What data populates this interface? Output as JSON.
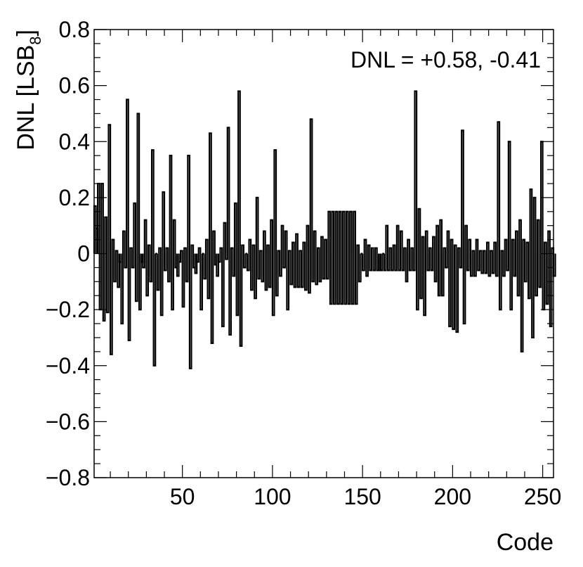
{
  "chart_data": {
    "type": "histogram",
    "xlabel": "Code",
    "ylabel": "DNL [LSB",
    "ylabel_subscript": "8",
    "ylabel_close": "]",
    "annotation": "DNL = +0.58, -0.41",
    "xlim": [
      1,
      256
    ],
    "ylim": [
      -0.8,
      0.8
    ],
    "x_ticks": [
      50,
      100,
      150,
      200,
      250
    ],
    "y_ticks": [
      0.8,
      0.6,
      0.4,
      0.2,
      0,
      -0.2,
      -0.4,
      -0.6,
      -0.8
    ],
    "y_tick_labels": [
      "0.8",
      "0.6",
      "0.4",
      "0.2",
      "0",
      "−0.2",
      "−0.4",
      "−0.6",
      "−0.8"
    ],
    "grid": false,
    "line_color": "#000000",
    "x_start": 1,
    "values": [
      0.17,
      0.09,
      0.25,
      -0.2,
      0.25,
      -0.24,
      0.13,
      -0.21,
      0.46,
      -0.36,
      0.05,
      -0.1,
      0.01,
      -0.12,
      -0.03,
      -0.25,
      0.08,
      -0.05,
      0.55,
      -0.31,
      0.02,
      -0.05,
      0.18,
      -0.17,
      0.5,
      -0.2,
      -0.03,
      -0.05,
      0.12,
      -0.15,
      0.03,
      -0.1,
      0.37,
      -0.4,
      0.0,
      -0.13,
      0.02,
      -0.22,
      0.22,
      -0.06,
      0.02,
      -0.1,
      0.35,
      -0.2,
      0.12,
      -0.05,
      -0.08,
      -0.03,
      0.01,
      -0.19,
      0.02,
      -0.1,
      0.35,
      -0.41,
      0.03,
      -0.05,
      -0.07,
      -0.03,
      0.02,
      -0.2,
      0.0,
      -0.09,
      0.05,
      -0.16,
      0.43,
      -0.32,
      0.08,
      -0.04,
      -0.08,
      -0.03,
      0.02,
      -0.26,
      0.11,
      -0.02,
      0.45,
      -0.29,
      0.02,
      -0.08,
      0.18,
      -0.22,
      0.58,
      -0.33,
      0.03,
      -0.05,
      0.0,
      -0.06,
      0.05,
      -0.13,
      0.03,
      -0.16,
      0.2,
      -0.09,
      0.01,
      -0.1,
      0.08,
      -0.13,
      0.03,
      -0.12,
      0.12,
      -0.22,
      0.37,
      -0.15,
      0.01,
      -0.08,
      0.1,
      -0.05,
      0.08,
      -0.2,
      0.01,
      -0.11,
      0.04,
      -0.12,
      0.07,
      -0.12,
      0.01,
      -0.12,
      0.04,
      -0.13,
      0.1,
      -0.14,
      0.48,
      -0.1,
      0.08,
      -0.11,
      0.02,
      -0.1,
      0.06,
      -0.09,
      0.05,
      -0.09,
      0.15,
      -0.18,
      0.15,
      -0.18,
      0.15,
      -0.18,
      0.15,
      -0.18,
      0.15,
      -0.18,
      0.15,
      -0.18,
      0.15,
      -0.18,
      0.15,
      -0.18,
      0.03,
      -0.1,
      0.0,
      -0.06,
      0.05,
      -0.08,
      0.03,
      -0.06,
      0.02,
      -0.06,
      0.02,
      -0.06,
      -0.06,
      -0.06,
      0.0,
      -0.06,
      0.1,
      -0.06,
      0.02,
      -0.06,
      0.03,
      -0.06,
      0.1,
      -0.06,
      0.08,
      -0.06,
      0.02,
      -0.1,
      0.05,
      -0.06,
      0.02,
      -0.06,
      0.58,
      -0.2,
      0.16,
      -0.16,
      0.06,
      -0.22,
      0.08,
      -0.06,
      0.02,
      -0.06,
      0.06,
      -0.1,
      0.1,
      -0.15,
      0.12,
      -0.15,
      0.02,
      -0.05,
      0.08,
      -0.26,
      0.05,
      -0.27,
      0.03,
      -0.28,
      0.02,
      -0.05,
      0.44,
      -0.25,
      0.1,
      -0.06,
      0.05,
      -0.08,
      0.01,
      -0.08,
      0.05,
      -0.06,
      0.01,
      -0.07,
      0.01,
      -0.07,
      0.04,
      -0.08,
      0.01,
      -0.07,
      0.04,
      -0.08,
      0.47,
      -0.2,
      0.01,
      -0.08,
      0.05,
      -0.06,
      0.4,
      -0.2,
      0.05,
      -0.08,
      0.08,
      -0.15,
      0.12,
      -0.35,
      0.05,
      -0.1,
      0.04,
      -0.16,
      0.23,
      -0.3,
      0.2,
      -0.15,
      0.12,
      -0.12,
      0.4,
      -0.2,
      0.04,
      -0.18,
      0.08,
      -0.26,
      0.02,
      -0.08
    ]
  }
}
